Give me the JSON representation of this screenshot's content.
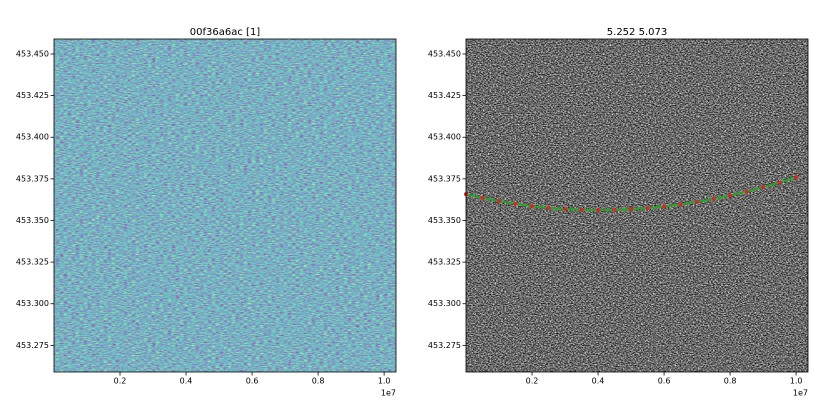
{
  "chart_data": [
    {
      "type": "heatmap",
      "title": "00f36a6ac [1]",
      "colormap": "viridis",
      "xlim": [
        0,
        10360000
      ],
      "xticks": [
        {
          "value": 2000000,
          "label": "0.2"
        },
        {
          "value": 4000000,
          "label": "0.4"
        },
        {
          "value": 6000000,
          "label": "0.6"
        },
        {
          "value": 8000000,
          "label": "0.8"
        },
        {
          "value": 10000000,
          "label": "1.0"
        }
      ],
      "x_offset_label": "1e7",
      "ylim": [
        453.259,
        453.459
      ],
      "yticks": [
        453.275,
        {
          "value": 453.3,
          "label": "453.300"
        },
        453.325,
        {
          "value": 453.35,
          "label": "453.350"
        },
        453.375,
        {
          "value": 453.4,
          "label": "453.400"
        },
        453.425,
        {
          "value": 453.45,
          "label": "453.450"
        }
      ]
    },
    {
      "type": "heatmap",
      "title": "5.252 5.073",
      "colormap": "gray",
      "xlim": [
        0,
        10360000
      ],
      "xticks": [
        {
          "value": 2000000,
          "label": "0.2"
        },
        {
          "value": 4000000,
          "label": "0.4"
        },
        {
          "value": 6000000,
          "label": "0.6"
        },
        {
          "value": 8000000,
          "label": "0.8"
        },
        {
          "value": 10000000,
          "label": "1.0"
        }
      ],
      "x_offset_label": "1e7",
      "ylim": [
        453.259,
        453.459
      ],
      "yticks": [
        453.275,
        {
          "value": 453.3,
          "label": "453.300"
        },
        453.325,
        {
          "value": 453.35,
          "label": "453.350"
        },
        453.375,
        {
          "value": 453.4,
          "label": "453.400"
        },
        453.425,
        {
          "value": 453.45,
          "label": "453.450"
        }
      ],
      "series": [
        {
          "type": "line",
          "color": "#2ca02c",
          "marker_color": "#d62728",
          "x": [
            0,
            500000,
            1000000,
            1500000,
            2000000,
            2500000,
            3000000,
            3500000,
            4000000,
            4500000,
            5000000,
            5500000,
            6000000,
            6500000,
            7000000,
            7500000,
            8000000,
            8500000,
            9000000,
            9500000,
            10000000
          ],
          "values": [
            453.3658,
            453.3636,
            453.3616,
            453.36,
            453.3586,
            453.3576,
            453.3568,
            453.3564,
            453.3562,
            453.3563,
            453.3568,
            453.3574,
            453.3584,
            453.3596,
            453.3612,
            453.3629,
            453.365,
            453.3673,
            453.37,
            453.3728,
            453.376
          ]
        }
      ]
    }
  ]
}
